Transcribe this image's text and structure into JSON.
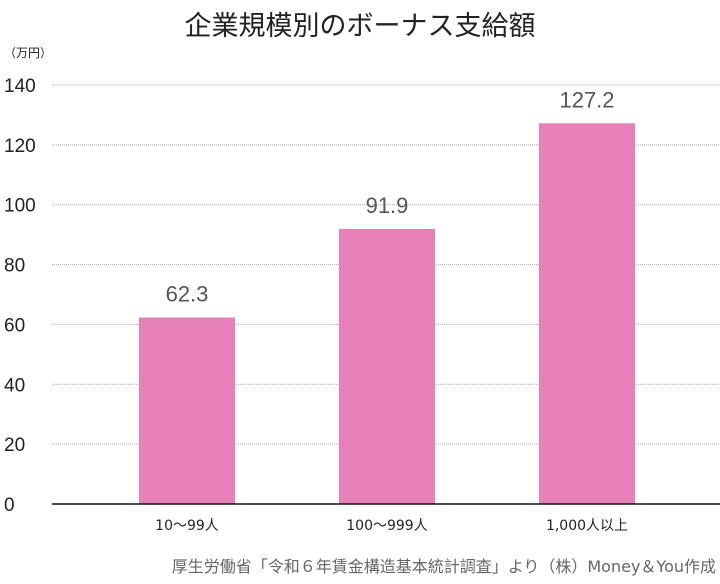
{
  "chart_data": {
    "type": "bar",
    "title": "企業規模別のボーナス支給額",
    "ylabel": "（万円）",
    "categories": [
      "10～99人",
      "100～999人",
      "1,000人以上"
    ],
    "values": [
      62.3,
      91.9,
      127.2
    ],
    "data_labels": [
      "62.3",
      "91.9",
      "127.2"
    ],
    "ylim": [
      0,
      140
    ],
    "yticks": [
      0,
      20,
      40,
      60,
      80,
      100,
      120,
      140
    ],
    "grid": true,
    "bar_color": "#e77fb9",
    "source": "厚生労働省「令和６年賃金構造基本統計調査」より（株）Money＆You作成"
  }
}
